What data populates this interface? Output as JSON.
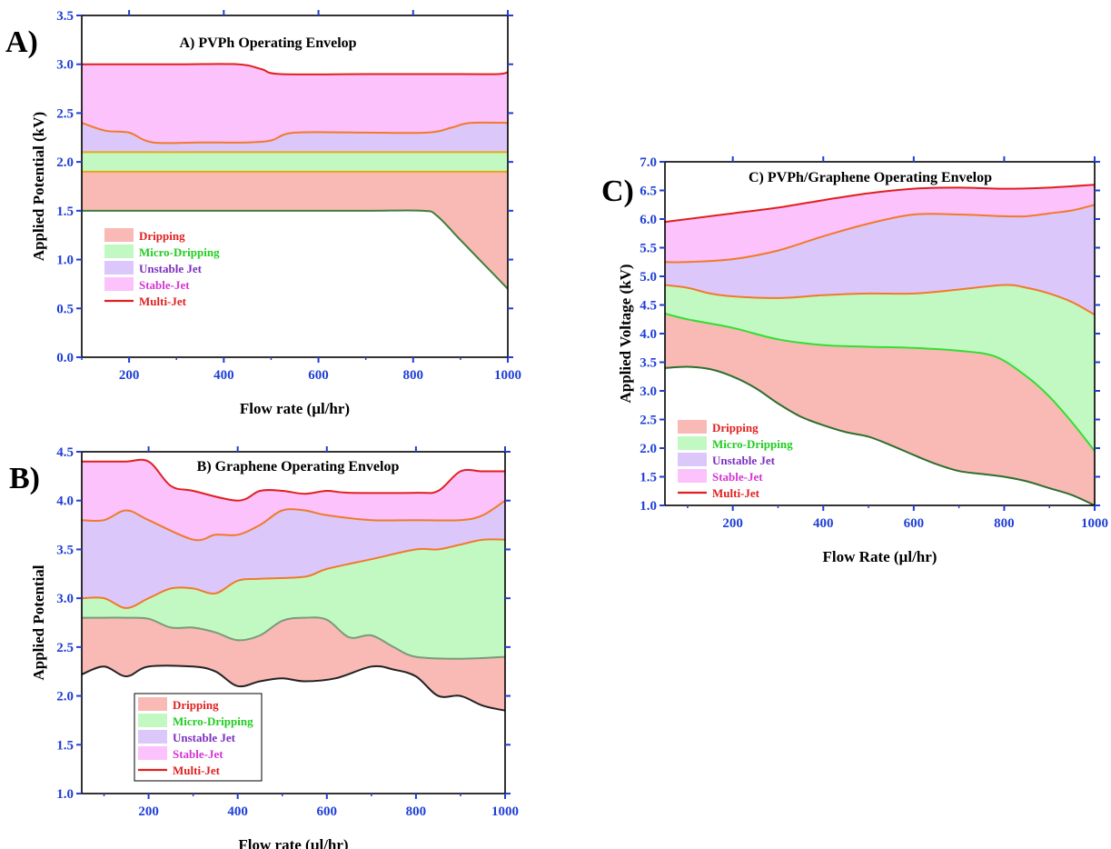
{
  "chart_data": [
    {
      "panel_label": "A)",
      "type": "area",
      "title": "A) PVPh Operating Envelop",
      "xlabel": "Flow rate (µl/hr)",
      "ylabel": "Applied Potential (kV)",
      "xlim": [
        100,
        1000
      ],
      "ylim": [
        0.0,
        3.5
      ],
      "xticks": [
        "200",
        "400",
        "600",
        "800",
        "1000"
      ],
      "yticks": [
        "0.0",
        "0.5",
        "1.0",
        "1.5",
        "2.0",
        "2.5",
        "3.0",
        "3.5"
      ],
      "legend": [
        {
          "label": "Dripping",
          "color": "#e0201f",
          "fill": "#f9b9b5",
          "kind": "patch"
        },
        {
          "label": "Micro-Dripping",
          "color": "#22cc22",
          "fill": "#c2f9c2",
          "kind": "patch"
        },
        {
          "label": "Unstable Jet",
          "color": "#7b2fbe",
          "fill": "#dcc7fb",
          "kind": "patch"
        },
        {
          "label": "Stable-Jet",
          "color": "#d435d4",
          "fill": "#fbc2fb",
          "kind": "patch"
        },
        {
          "label": "Multi-Jet",
          "color": "#e0201f",
          "fill": "#e0201f",
          "kind": "line"
        }
      ],
      "legend_placement": "lower-left",
      "boundaries": [
        {
          "name": "dripping-onset",
          "color": "#3f7f3f",
          "points": [
            [
              100,
              1.5
            ],
            [
              300,
              1.5
            ],
            [
              500,
              1.5
            ],
            [
              700,
              1.5
            ],
            [
              820,
              1.5
            ],
            [
              850,
              1.45
            ],
            [
              900,
              1.2
            ],
            [
              950,
              0.95
            ],
            [
              1000,
              0.7
            ]
          ]
        },
        {
          "name": "micro-dripping-onset",
          "color": "#e6a817",
          "points": [
            [
              100,
              1.9
            ],
            [
              400,
              1.9
            ],
            [
              700,
              1.9
            ],
            [
              1000,
              1.9
            ]
          ]
        },
        {
          "name": "unstable-jet-onset",
          "color": "#e6a817",
          "points": [
            [
              100,
              2.1
            ],
            [
              400,
              2.1
            ],
            [
              700,
              2.1
            ],
            [
              1000,
              2.1
            ]
          ]
        },
        {
          "name": "stable-jet-onset",
          "color": "#f07a2a",
          "points": [
            [
              100,
              2.4
            ],
            [
              150,
              2.32
            ],
            [
              200,
              2.3
            ],
            [
              250,
              2.2
            ],
            [
              350,
              2.2
            ],
            [
              450,
              2.2
            ],
            [
              500,
              2.22
            ],
            [
              550,
              2.3
            ],
            [
              700,
              2.3
            ],
            [
              830,
              2.3
            ],
            [
              880,
              2.35
            ],
            [
              920,
              2.4
            ],
            [
              1000,
              2.4
            ]
          ]
        },
        {
          "name": "multi-jet-onset",
          "color": "#e0201f",
          "points": [
            [
              100,
              3.0
            ],
            [
              300,
              3.0
            ],
            [
              430,
              3.0
            ],
            [
              480,
              2.95
            ],
            [
              520,
              2.9
            ],
            [
              700,
              2.9
            ],
            [
              900,
              2.9
            ],
            [
              980,
              2.9
            ],
            [
              1000,
              2.92
            ]
          ]
        }
      ]
    },
    {
      "panel_label": "B)",
      "type": "area",
      "title": "B) Graphene Operating Envelop",
      "xlabel": "Flow rate (µl/hr)",
      "ylabel": "Applied Potential",
      "xlim": [
        50,
        1000
      ],
      "ylim": [
        1.0,
        4.5
      ],
      "xticks": [
        "200",
        "400",
        "600",
        "800",
        "1000"
      ],
      "yticks": [
        "1.0",
        "1.5",
        "2.0",
        "2.5",
        "3.0",
        "3.5",
        "4.0",
        "4.5"
      ],
      "legend": [
        {
          "label": "Dripping",
          "color": "#e0201f",
          "fill": "#f9b9b5",
          "kind": "patch"
        },
        {
          "label": "Micro-Dripping",
          "color": "#22cc22",
          "fill": "#c2f9c2",
          "kind": "patch"
        },
        {
          "label": "Unstable Jet",
          "color": "#7b2fbe",
          "fill": "#dcc7fb",
          "kind": "patch"
        },
        {
          "label": "Stable-Jet",
          "color": "#d435d4",
          "fill": "#fbc2fb",
          "kind": "patch"
        },
        {
          "label": "Multi-Jet",
          "color": "#e0201f",
          "fill": "#e0201f",
          "kind": "line"
        }
      ],
      "legend_placement": "lower-left",
      "boundaries": [
        {
          "name": "dripping-onset",
          "color": "#222222",
          "points": [
            [
              50,
              2.22
            ],
            [
              100,
              2.3
            ],
            [
              150,
              2.2
            ],
            [
              200,
              2.3
            ],
            [
              300,
              2.3
            ],
            [
              350,
              2.25
            ],
            [
              400,
              2.1
            ],
            [
              450,
              2.15
            ],
            [
              500,
              2.18
            ],
            [
              550,
              2.15
            ],
            [
              620,
              2.18
            ],
            [
              700,
              2.3
            ],
            [
              750,
              2.27
            ],
            [
              800,
              2.2
            ],
            [
              850,
              2.0
            ],
            [
              900,
              2.0
            ],
            [
              950,
              1.9
            ],
            [
              1000,
              1.85
            ]
          ]
        },
        {
          "name": "micro-dripping-onset",
          "color": "#7a9b7a",
          "points": [
            [
              50,
              2.8
            ],
            [
              100,
              2.8
            ],
            [
              150,
              2.8
            ],
            [
              200,
              2.79
            ],
            [
              250,
              2.7
            ],
            [
              300,
              2.7
            ],
            [
              350,
              2.65
            ],
            [
              400,
              2.57
            ],
            [
              450,
              2.62
            ],
            [
              500,
              2.77
            ],
            [
              550,
              2.8
            ],
            [
              600,
              2.78
            ],
            [
              650,
              2.6
            ],
            [
              700,
              2.62
            ],
            [
              750,
              2.5
            ],
            [
              800,
              2.4
            ],
            [
              900,
              2.38
            ],
            [
              1000,
              2.4
            ]
          ]
        },
        {
          "name": "unstable-jet-onset",
          "color": "#f07a2a",
          "points": [
            [
              50,
              3.0
            ],
            [
              100,
              3.0
            ],
            [
              150,
              2.9
            ],
            [
              200,
              3.0
            ],
            [
              250,
              3.1
            ],
            [
              300,
              3.1
            ],
            [
              350,
              3.05
            ],
            [
              400,
              3.18
            ],
            [
              450,
              3.2
            ],
            [
              550,
              3.22
            ],
            [
              600,
              3.3
            ],
            [
              700,
              3.4
            ],
            [
              800,
              3.5
            ],
            [
              850,
              3.5
            ],
            [
              900,
              3.55
            ],
            [
              950,
              3.6
            ],
            [
              1000,
              3.6
            ]
          ]
        },
        {
          "name": "stable-jet-onset",
          "color": "#f07a2a",
          "points": [
            [
              50,
              3.8
            ],
            [
              100,
              3.8
            ],
            [
              150,
              3.9
            ],
            [
              200,
              3.8
            ],
            [
              300,
              3.6
            ],
            [
              350,
              3.65
            ],
            [
              400,
              3.65
            ],
            [
              450,
              3.75
            ],
            [
              500,
              3.9
            ],
            [
              550,
              3.9
            ],
            [
              600,
              3.85
            ],
            [
              700,
              3.8
            ],
            [
              800,
              3.8
            ],
            [
              900,
              3.8
            ],
            [
              950,
              3.85
            ],
            [
              1000,
              4.0
            ]
          ]
        },
        {
          "name": "multi-jet-onset",
          "color": "#e0201f",
          "points": [
            [
              50,
              4.4
            ],
            [
              100,
              4.4
            ],
            [
              150,
              4.4
            ],
            [
              200,
              4.4
            ],
            [
              250,
              4.15
            ],
            [
              300,
              4.1
            ],
            [
              400,
              4.0
            ],
            [
              450,
              4.1
            ],
            [
              500,
              4.1
            ],
            [
              550,
              4.07
            ],
            [
              600,
              4.1
            ],
            [
              650,
              4.08
            ],
            [
              800,
              4.08
            ],
            [
              850,
              4.1
            ],
            [
              900,
              4.3
            ],
            [
              950,
              4.3
            ],
            [
              1000,
              4.3
            ]
          ]
        }
      ]
    },
    {
      "panel_label": "C)",
      "type": "area",
      "title": "C) PVPh/Graphene Operating Envelop",
      "xlabel": "Flow Rate (µl/hr)",
      "ylabel": "Applied Voltage (kV)",
      "xlim": [
        50,
        1000
      ],
      "ylim": [
        1.0,
        7.0
      ],
      "xticks": [
        "200",
        "400",
        "600",
        "800",
        "1000"
      ],
      "yticks": [
        "1.0",
        "1.5",
        "2.0",
        "2.5",
        "3.0",
        "3.5",
        "4.0",
        "4.5",
        "5.0",
        "5.5",
        "6.0",
        "6.5",
        "7.0"
      ],
      "legend": [
        {
          "label": "Dripping",
          "color": "#e0201f",
          "fill": "#f9b9b5",
          "kind": "patch"
        },
        {
          "label": "Micro-Dripping",
          "color": "#22cc22",
          "fill": "#c2f9c2",
          "kind": "patch"
        },
        {
          "label": "Unstable Jet",
          "color": "#7b2fbe",
          "fill": "#dcc7fb",
          "kind": "patch"
        },
        {
          "label": "Stable-Jet",
          "color": "#d435d4",
          "fill": "#fbc2fb",
          "kind": "patch"
        },
        {
          "label": "Multi-Jet",
          "color": "#e0201f",
          "fill": "#e0201f",
          "kind": "line"
        }
      ],
      "legend_placement": "lower-left",
      "boundaries": [
        {
          "name": "dripping-onset",
          "color": "#2e6e2e",
          "points": [
            [
              50,
              3.4
            ],
            [
              100,
              3.42
            ],
            [
              150,
              3.38
            ],
            [
              200,
              3.25
            ],
            [
              250,
              3.05
            ],
            [
              300,
              2.78
            ],
            [
              350,
              2.55
            ],
            [
              400,
              2.4
            ],
            [
              450,
              2.28
            ],
            [
              500,
              2.2
            ],
            [
              550,
              2.05
            ],
            [
              600,
              1.88
            ],
            [
              650,
              1.72
            ],
            [
              700,
              1.6
            ],
            [
              750,
              1.55
            ],
            [
              800,
              1.5
            ],
            [
              850,
              1.42
            ],
            [
              900,
              1.3
            ],
            [
              950,
              1.18
            ],
            [
              1000,
              1.0
            ]
          ]
        },
        {
          "name": "micro-dripping-onset",
          "color": "#33dd33",
          "points": [
            [
              50,
              4.35
            ],
            [
              100,
              4.25
            ],
            [
              200,
              4.1
            ],
            [
              300,
              3.9
            ],
            [
              400,
              3.8
            ],
            [
              500,
              3.77
            ],
            [
              600,
              3.75
            ],
            [
              700,
              3.7
            ],
            [
              780,
              3.6
            ],
            [
              850,
              3.25
            ],
            [
              900,
              2.9
            ],
            [
              950,
              2.45
            ],
            [
              1000,
              1.95
            ]
          ]
        },
        {
          "name": "unstable-jet-onset",
          "color": "#f07a2a",
          "points": [
            [
              50,
              4.85
            ],
            [
              100,
              4.8
            ],
            [
              150,
              4.7
            ],
            [
              200,
              4.65
            ],
            [
              300,
              4.62
            ],
            [
              400,
              4.67
            ],
            [
              500,
              4.7
            ],
            [
              600,
              4.7
            ],
            [
              700,
              4.77
            ],
            [
              800,
              4.85
            ],
            [
              850,
              4.8
            ],
            [
              900,
              4.7
            ],
            [
              950,
              4.55
            ],
            [
              1000,
              4.33
            ]
          ]
        },
        {
          "name": "stable-jet-onset",
          "color": "#f07a2a",
          "points": [
            [
              50,
              5.25
            ],
            [
              100,
              5.25
            ],
            [
              200,
              5.3
            ],
            [
              300,
              5.45
            ],
            [
              400,
              5.7
            ],
            [
              500,
              5.92
            ],
            [
              600,
              6.08
            ],
            [
              700,
              6.08
            ],
            [
              800,
              6.05
            ],
            [
              850,
              6.05
            ],
            [
              900,
              6.1
            ],
            [
              950,
              6.15
            ],
            [
              1000,
              6.25
            ]
          ]
        },
        {
          "name": "multi-jet-onset",
          "color": "#e0201f",
          "points": [
            [
              50,
              5.95
            ],
            [
              100,
              6.0
            ],
            [
              200,
              6.1
            ],
            [
              300,
              6.2
            ],
            [
              400,
              6.33
            ],
            [
              500,
              6.45
            ],
            [
              600,
              6.53
            ],
            [
              700,
              6.55
            ],
            [
              800,
              6.53
            ],
            [
              900,
              6.55
            ],
            [
              1000,
              6.6
            ]
          ]
        }
      ],
      "regions": [
        {
          "name": "Dripping",
          "fill": "#f9b9b5"
        },
        {
          "name": "Micro-Dripping",
          "fill": "#c2f9c2"
        },
        {
          "name": "Unstable Jet",
          "fill": "#dcc7fb"
        },
        {
          "name": "Stable-Jet",
          "fill": "#fbc2fb"
        }
      ]
    }
  ]
}
